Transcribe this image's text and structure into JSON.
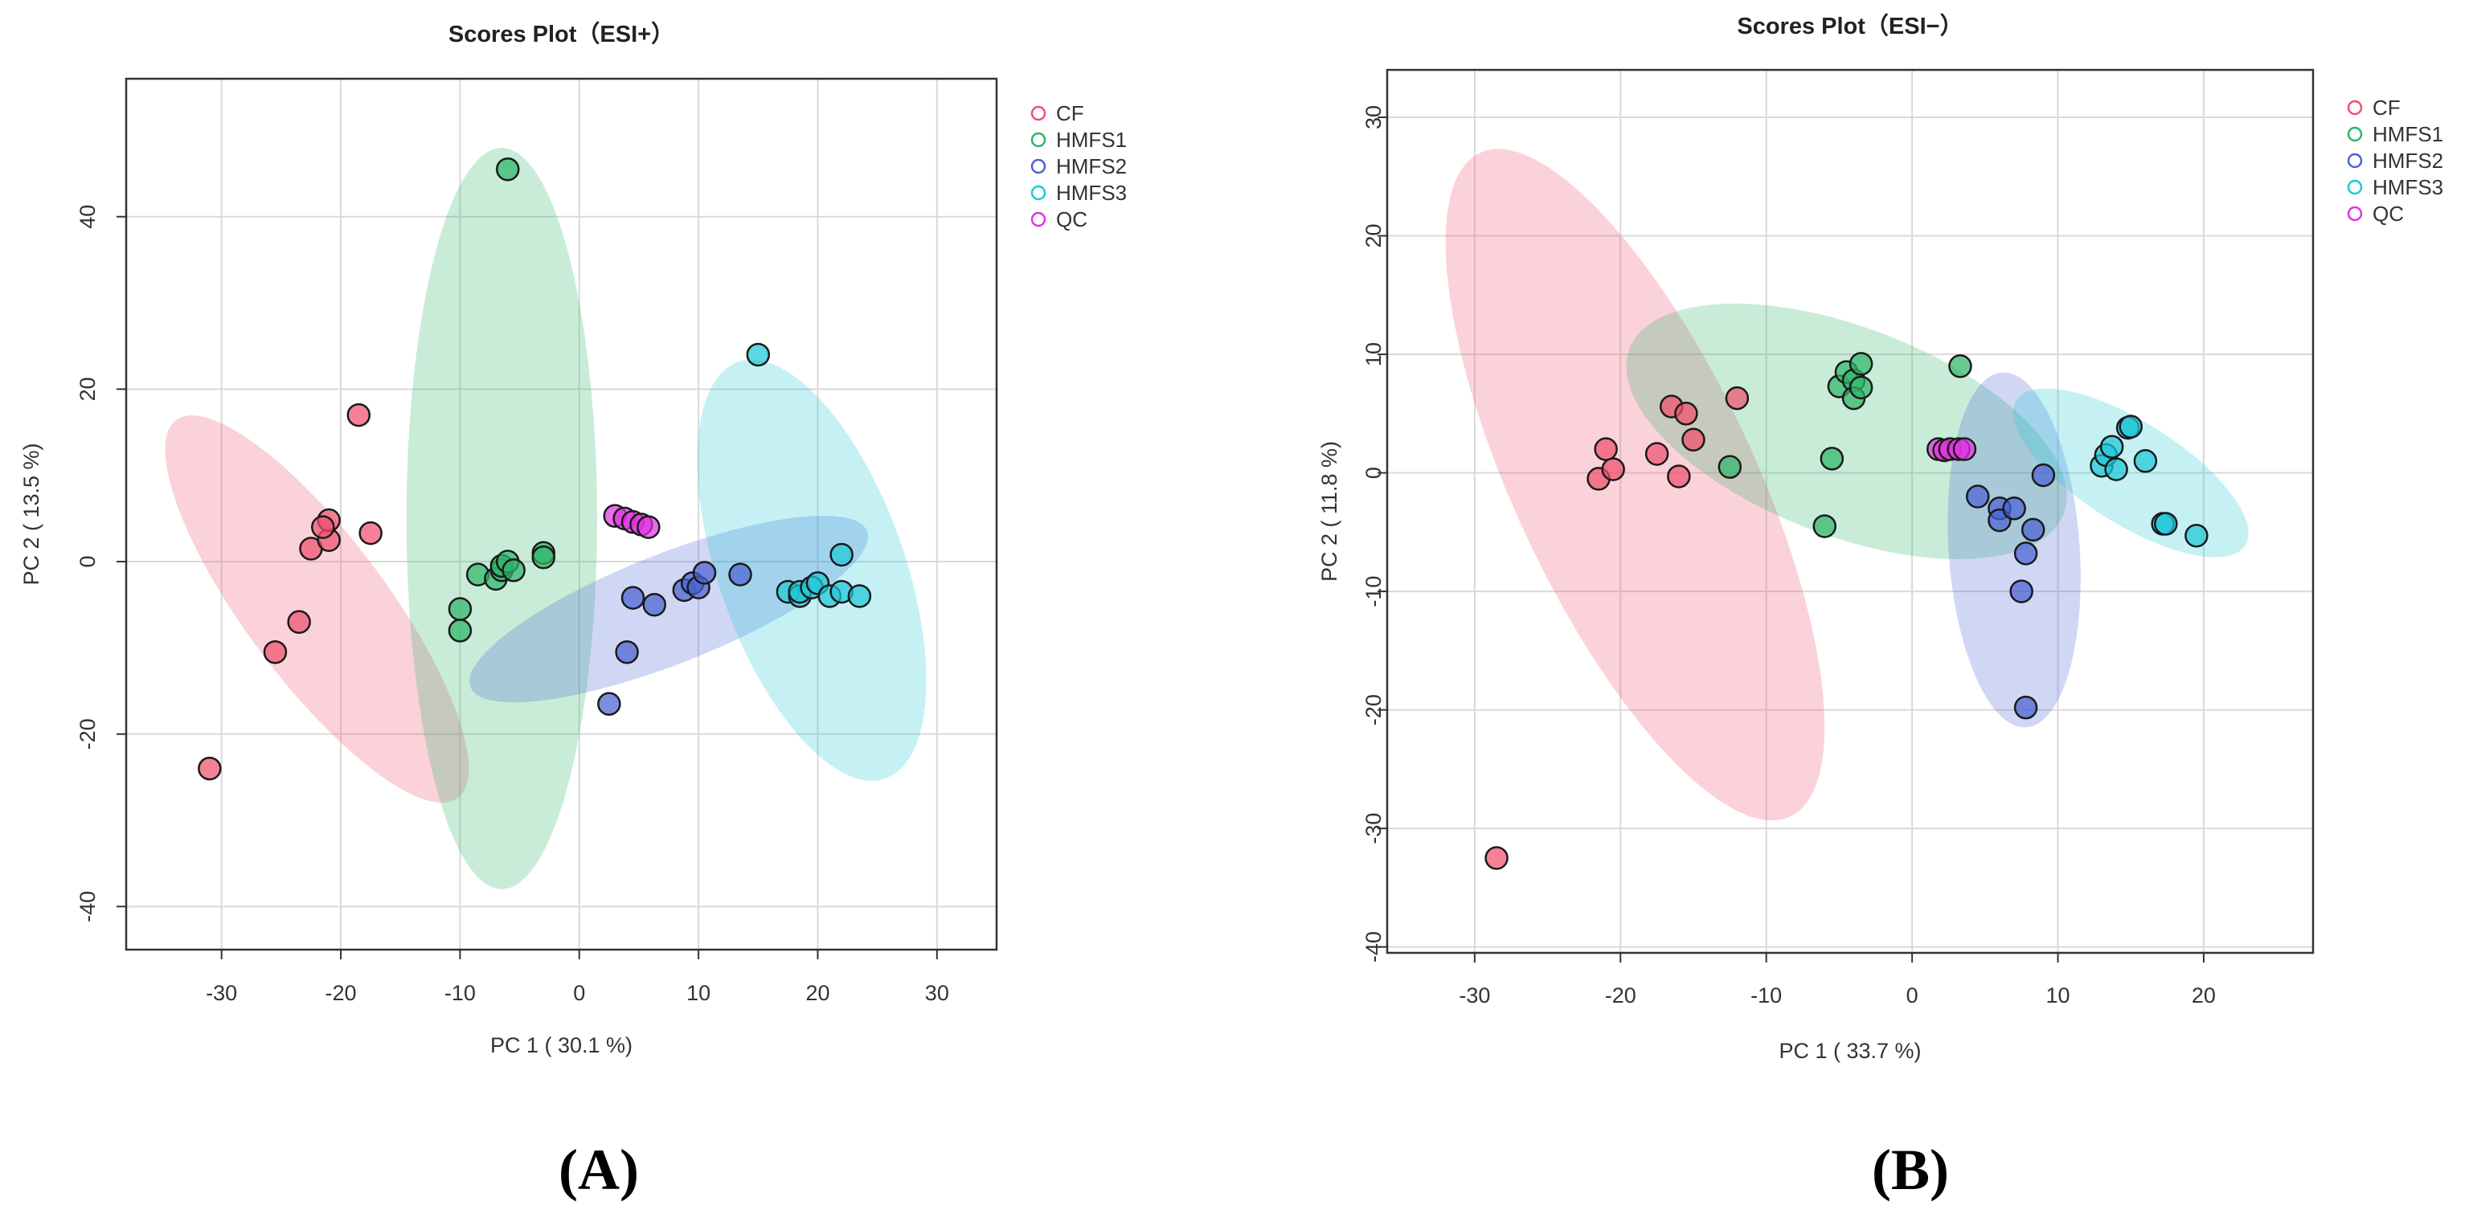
{
  "chart_data": [
    {
      "type": "scatter",
      "panel_label": "(A)",
      "title": "Scores Plot（ESI+）",
      "xlabel": "PC 1 ( 30.1 %)",
      "ylabel": "PC 2 ( 13.5 %)",
      "xlim": [
        -38,
        35
      ],
      "ylim": [
        -45,
        56
      ],
      "xticks": [
        "-30",
        "-20",
        "-10",
        "0",
        "10",
        "20",
        "30"
      ],
      "xtick_values": [
        -30,
        -20,
        -10,
        0,
        10,
        20,
        30
      ],
      "yticks": [
        "-40",
        "-20",
        "0",
        "20",
        "40"
      ],
      "ytick_values": [
        -40,
        -20,
        0,
        20,
        40
      ],
      "grid": true,
      "legend_position": "top-right",
      "series": [
        {
          "name": "CF",
          "color": "#f0506e",
          "points": [
            [
              -31,
              -24
            ],
            [
              -25.5,
              -10.5
            ],
            [
              -23.5,
              -7
            ],
            [
              -22.5,
              1.5
            ],
            [
              -21,
              2.5
            ],
            [
              -21,
              4.8
            ],
            [
              -21.5,
              4
            ],
            [
              -18.5,
              17
            ],
            [
              -17.5,
              3.3
            ]
          ],
          "ellipse": {
            "cx": -22,
            "cy": -5.5,
            "rx": 25,
            "ry": 6.5,
            "angle": -63
          }
        },
        {
          "name": "HMFS1",
          "color": "#2fb56a",
          "points": [
            [
              -6,
              45.5
            ],
            [
              -10,
              -5.5
            ],
            [
              -10,
              -8
            ],
            [
              -8.5,
              -1.5
            ],
            [
              -7,
              -2
            ],
            [
              -6.5,
              -1
            ],
            [
              -6.5,
              -0.5
            ],
            [
              -6,
              0
            ],
            [
              -5.5,
              -1
            ],
            [
              -3,
              1
            ],
            [
              -3,
              0.5
            ]
          ],
          "ellipse": {
            "cx": -6.5,
            "cy": 5,
            "rx": 43,
            "ry": 8,
            "angle": -90
          }
        },
        {
          "name": "HMFS2",
          "color": "#4a63d4",
          "points": [
            [
              2.5,
              -16.5
            ],
            [
              4,
              -10.5
            ],
            [
              4.5,
              -4.2
            ],
            [
              6.3,
              -5
            ],
            [
              8.8,
              -3.3
            ],
            [
              9.5,
              -2.5
            ],
            [
              10,
              -3
            ],
            [
              10.5,
              -1.3
            ],
            [
              13.5,
              -1.5
            ]
          ],
          "ellipse": {
            "cx": 7.5,
            "cy": -5.5,
            "rx": 19,
            "ry": 6,
            "angle": 30
          }
        },
        {
          "name": "HMFS3",
          "color": "#1fc8d8",
          "points": [
            [
              15,
              24
            ],
            [
              17.5,
              -3.5
            ],
            [
              18.5,
              -4
            ],
            [
              18.5,
              -3.5
            ],
            [
              19.5,
              -3
            ],
            [
              20,
              -2.5
            ],
            [
              21,
              -4
            ],
            [
              22,
              -3.5
            ],
            [
              22,
              0.8
            ],
            [
              23.5,
              -4
            ]
          ],
          "ellipse": {
            "cx": 19.5,
            "cy": -1,
            "rx": 25,
            "ry": 8,
            "angle": -77
          }
        },
        {
          "name": "QC",
          "color": "#e033e0",
          "points": [
            [
              3,
              5.3
            ],
            [
              3.8,
              5
            ],
            [
              4.5,
              4.6
            ],
            [
              5.2,
              4.3
            ],
            [
              5.8,
              4
            ]
          ]
        }
      ]
    },
    {
      "type": "scatter",
      "panel_label": "(B)",
      "title": "Scores Plot（ESI−）",
      "xlabel": "PC 1 ( 33.7 %)",
      "ylabel": "PC 2 ( 11.8 %)",
      "xlim": [
        -36,
        27.5
      ],
      "ylim": [
        -40.5,
        34
      ],
      "xticks": [
        "-30",
        "-20",
        "-10",
        "0",
        "10",
        "20"
      ],
      "xtick_values": [
        -30,
        -20,
        -10,
        0,
        10,
        20
      ],
      "yticks": [
        "-40",
        "-30",
        "-20",
        "-10",
        "0",
        "10",
        "20",
        "30"
      ],
      "ytick_values": [
        -40,
        -30,
        -20,
        -10,
        0,
        10,
        20,
        30
      ],
      "grid": true,
      "legend_position": "top-right",
      "series": [
        {
          "name": "CF",
          "color": "#f0506e",
          "points": [
            [
              -28.5,
              -32.5
            ],
            [
              -21.5,
              -0.5
            ],
            [
              -21,
              2
            ],
            [
              -20.5,
              0.3
            ],
            [
              -17.5,
              1.6
            ],
            [
              -16.5,
              5.6
            ],
            [
              -16,
              -0.3
            ],
            [
              -15.5,
              5
            ],
            [
              -15,
              2.8
            ],
            [
              -12,
              6.3
            ]
          ],
          "ellipse": {
            "cx": -19,
            "cy": -1,
            "rx": 30,
            "ry": 8.5,
            "angle": -70
          }
        },
        {
          "name": "HMFS1",
          "color": "#2fb56a",
          "points": [
            [
              -12.5,
              0.5
            ],
            [
              -6,
              -4.5
            ],
            [
              -5.5,
              1.2
            ],
            [
              -5,
              7.3
            ],
            [
              -4.5,
              8.5
            ],
            [
              -4,
              7.8
            ],
            [
              -4,
              6.3
            ],
            [
              -3.5,
              9.2
            ],
            [
              -3.5,
              7.2
            ],
            [
              3.3,
              9
            ]
          ],
          "ellipse": {
            "cx": -4.5,
            "cy": 3.5,
            "rx": 16.5,
            "ry": 8.5,
            "angle": -28
          }
        },
        {
          "name": "HMFS2",
          "color": "#4a63d4",
          "points": [
            [
              4.5,
              -2
            ],
            [
              6,
              -3
            ],
            [
              6,
              -4
            ],
            [
              7,
              -3
            ],
            [
              7.5,
              -10
            ],
            [
              7.8,
              -6.8
            ],
            [
              8.3,
              -4.8
            ],
            [
              9,
              -0.2
            ],
            [
              7.8,
              -19.8
            ]
          ],
          "ellipse": {
            "cx": 7,
            "cy": -6.5,
            "rx": 15,
            "ry": 4.5,
            "angle": -87
          }
        },
        {
          "name": "HMFS3",
          "color": "#1fc8d8",
          "points": [
            [
              13,
              0.6
            ],
            [
              13.3,
              1.5
            ],
            [
              13.7,
              2.2
            ],
            [
              14,
              0.3
            ],
            [
              14.8,
              3.8
            ],
            [
              15,
              3.9
            ],
            [
              16,
              1
            ],
            [
              17.2,
              -4.3
            ],
            [
              17.4,
              -4.3
            ],
            [
              19.5,
              -5.3
            ]
          ],
          "ellipse": {
            "cx": 15,
            "cy": 0,
            "rx": 10,
            "ry": 4,
            "angle": -40
          }
        },
        {
          "name": "QC",
          "color": "#e033e0",
          "points": [
            [
              1.8,
              2
            ],
            [
              2.2,
              1.9
            ],
            [
              2.6,
              2
            ],
            [
              3.2,
              2
            ],
            [
              3.6,
              2
            ]
          ]
        }
      ]
    }
  ]
}
